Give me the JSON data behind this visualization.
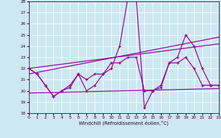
{
  "xlabel": "Windchill (Refroidissement éolien,°C)",
  "xlim": [
    0,
    23
  ],
  "ylim": [
    18,
    28
  ],
  "yticks": [
    18,
    19,
    20,
    21,
    22,
    23,
    24,
    25,
    26,
    27,
    28
  ],
  "xticks": [
    0,
    1,
    2,
    3,
    4,
    5,
    6,
    7,
    8,
    9,
    10,
    11,
    12,
    13,
    14,
    15,
    16,
    17,
    18,
    19,
    20,
    21,
    22,
    23
  ],
  "bg_color": "#cce8f0",
  "line_color": "#990099",
  "grid_color": "#ffffff",
  "line1_x": [
    0,
    1,
    2,
    3,
    4,
    5,
    6,
    7,
    8,
    9,
    10,
    11,
    12,
    13,
    14,
    15,
    16,
    17,
    18,
    19,
    20,
    21,
    22,
    23
  ],
  "line1_y": [
    22,
    21.5,
    20.5,
    19.5,
    20.0,
    20.5,
    21.5,
    21.0,
    21.5,
    21.5,
    22.0,
    24.0,
    28.3,
    28.3,
    18.5,
    20.0,
    20.5,
    22.5,
    23.0,
    25.0,
    24.0,
    22.0,
    20.5,
    20.5
  ],
  "line2_x": [
    0,
    1,
    2,
    3,
    4,
    5,
    6,
    7,
    8,
    9,
    10,
    11,
    12,
    13,
    14,
    15,
    16,
    17,
    18,
    19,
    20,
    21,
    22,
    23
  ],
  "line2_y": [
    22,
    21.5,
    20.5,
    19.5,
    20.0,
    20.3,
    21.5,
    20.0,
    20.5,
    21.5,
    22.5,
    22.5,
    23.0,
    23.0,
    20.0,
    20.0,
    20.3,
    22.5,
    22.5,
    23.0,
    22.0,
    20.5,
    20.5,
    20.5
  ],
  "line3_x": [
    0,
    23
  ],
  "line3_y": [
    19.8,
    20.2
  ],
  "line4_x": [
    0,
    23
  ],
  "line4_y": [
    21.5,
    24.8
  ],
  "line5_x": [
    0,
    23
  ],
  "line5_y": [
    22.0,
    24.2
  ]
}
